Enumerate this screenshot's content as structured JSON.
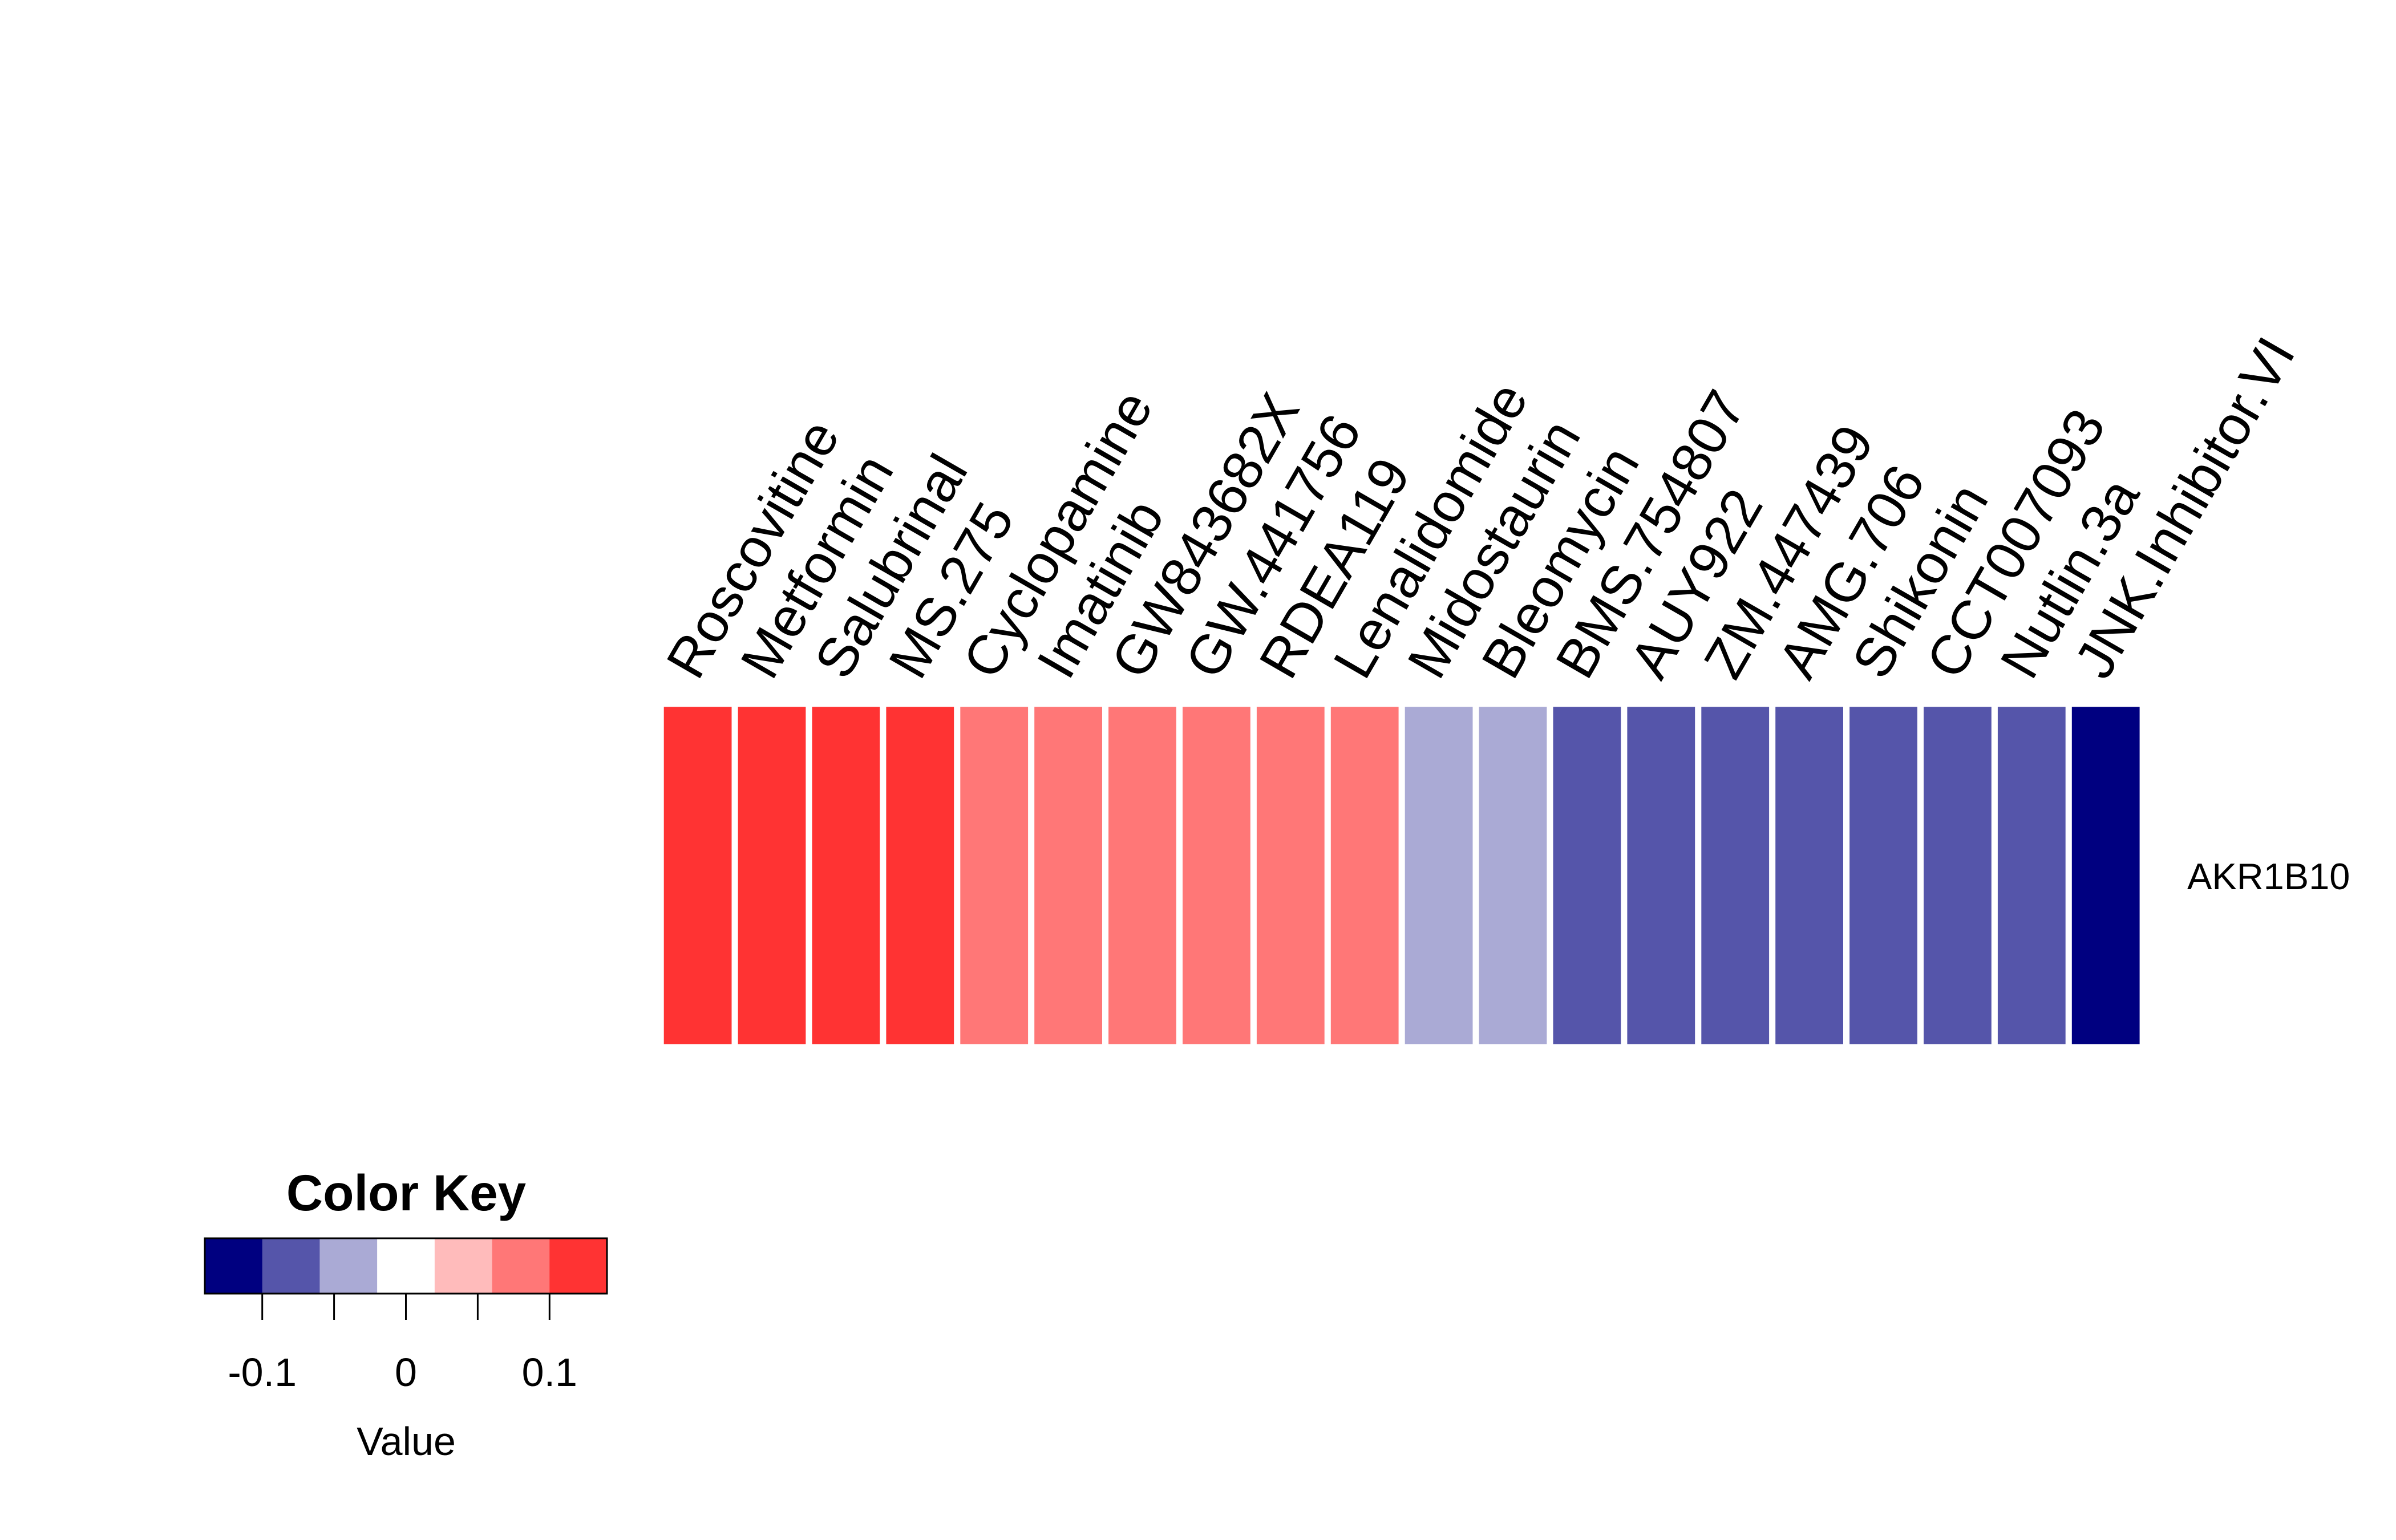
{
  "chart_data": {
    "type": "heatmap",
    "rows": [
      "AKR1B10"
    ],
    "columns": [
      "Roscovitine",
      "Metformin",
      "Salubrinal",
      "MS.275",
      "Cyclopamine",
      "Imatinib",
      "GW843682X",
      "GW.441756",
      "RDEA119",
      "Lenalidomide",
      "Midostaurin",
      "Bleomycin",
      "BMS.754807",
      "AUY922",
      "ZM.447439",
      "AMG.706",
      "Shikonin",
      "CCT007093",
      "Nutlin.3a",
      "JNK.Inhibitor.VI"
    ],
    "values": [
      [
        0.12,
        0.12,
        0.12,
        0.12,
        0.08,
        0.08,
        0.08,
        0.08,
        0.08,
        0.08,
        -0.04,
        -0.04,
        -0.08,
        -0.08,
        -0.08,
        -0.08,
        -0.08,
        -0.08,
        -0.08,
        -0.12
      ]
    ],
    "color_key": {
      "title": "Color Key",
      "xlabel": "Value",
      "breaks": [
        -0.14,
        -0.1,
        -0.06,
        -0.02,
        0.02,
        0.06,
        0.1,
        0.14
      ],
      "colors": [
        "#000080",
        "#5555AA",
        "#AAAAD5",
        "#FFFFFF",
        "#FFBBBB",
        "#FF7777",
        "#FF3333"
      ],
      "ticks": [
        -0.1,
        -0.05,
        0,
        0.05,
        0.1
      ],
      "tick_labels": [
        {
          "value": -0.1,
          "label": "-0.1"
        },
        {
          "value": 0,
          "label": "0"
        },
        {
          "value": 0.1,
          "label": "0.1"
        }
      ]
    }
  }
}
